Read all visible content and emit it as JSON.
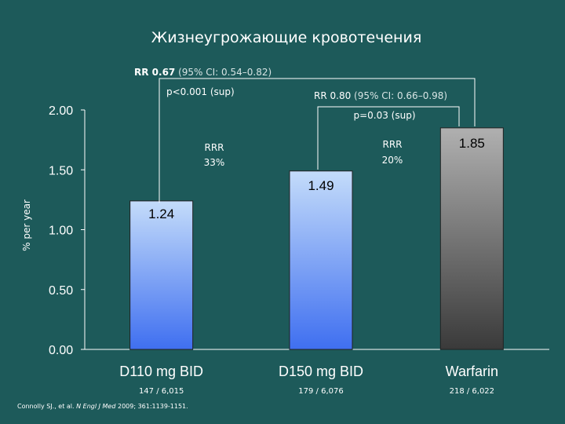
{
  "colors": {
    "background": "#1d5a5a",
    "bar_blue_top": "#c4dcfa",
    "bar_blue_bottom": "#3f6ff0",
    "bar_gray_top": "#b0b0b0",
    "bar_gray_bottom": "#3a3a3a",
    "axis": "#ffffff"
  },
  "chart_data": {
    "type": "bar",
    "title": "Жизнеугрожающие кровотечения",
    "ylabel": "% per year",
    "xlabel": "",
    "ylim": [
      0,
      2.0
    ],
    "yticks": [
      "0.00",
      "0.50",
      "1.00",
      "1.50",
      "2.00"
    ],
    "grid": false,
    "categories": [
      "D110 mg BID",
      "D150 mg BID",
      "Warfarin"
    ],
    "values": [
      1.24,
      1.49,
      1.85
    ],
    "value_labels": [
      "1.24",
      "1.49",
      "1.85"
    ],
    "event_counts": [
      "147 / 6,015",
      "179 / 6,076",
      "218 / 6,022"
    ],
    "annotations": {
      "rr1_bold": "RR 0.67",
      "rr1_ci": " (95% CI: 0.54–0.82)",
      "p1": "p<0.001 (sup)",
      "rrr1_line1": "RRR",
      "rrr1_line2": "33%",
      "rr2_bold": "RR 0.80",
      "rr2_ci": " (95% CI: 0.66–0.98)",
      "p2": "p=0.03 (sup)",
      "rrr2_line1": "RRR",
      "rrr2_line2": "20%"
    }
  },
  "citation": {
    "authors": "Connolly SJ., et al. ",
    "journal": "N Engl J Med",
    "details": " 2009; 361:1139-1151."
  }
}
